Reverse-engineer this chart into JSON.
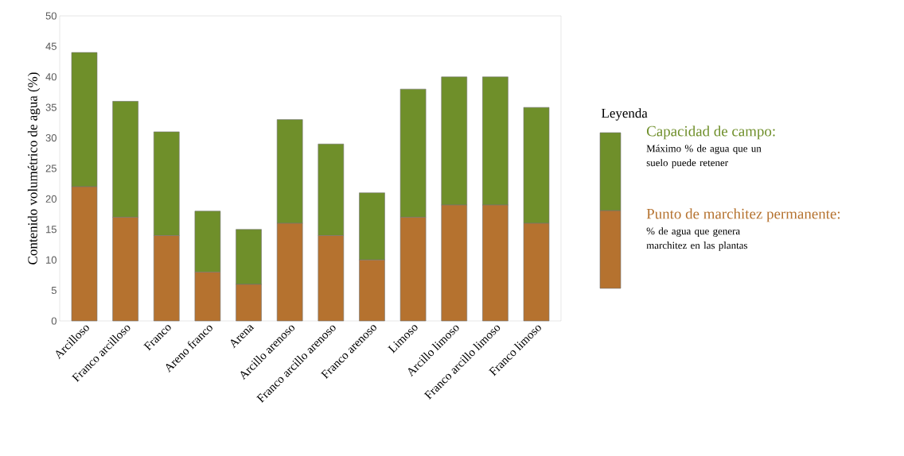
{
  "chart_data": {
    "type": "bar",
    "stacked": true,
    "categories": [
      "Arcilloso",
      "Franco arcilloso",
      "Franco",
      "Areno franco",
      "Arena",
      "Arcillo arenoso",
      "Franco arcillo arenoso",
      "Franco arenoso",
      "Limoso",
      "Arcillo limoso",
      "Franco arcillo limoso",
      "Franco limoso"
    ],
    "ylabel": "Contenido volumétrico de agua (%)",
    "ylim": [
      0,
      50
    ],
    "yticks": [
      0,
      5,
      10,
      15,
      20,
      25,
      30,
      35,
      40,
      45,
      50
    ],
    "legend": "right",
    "legend_title": "Leyenda",
    "series": [
      {
        "name": "Punto de marchitez permanente:",
        "color": "#b5722f",
        "values": [
          22,
          17,
          14,
          8,
          6,
          16,
          14,
          10,
          17,
          19,
          19,
          16
        ]
      },
      {
        "name": "Capacidad de campo:",
        "color": "#6f8f2a",
        "values": [
          22,
          19,
          17,
          10,
          9,
          17,
          15,
          11,
          21,
          21,
          21,
          19
        ]
      }
    ],
    "annotations": [
      "Máximo % de agua que un suelo puede retener",
      "% de agua que genera marchitez en las plantas"
    ]
  }
}
